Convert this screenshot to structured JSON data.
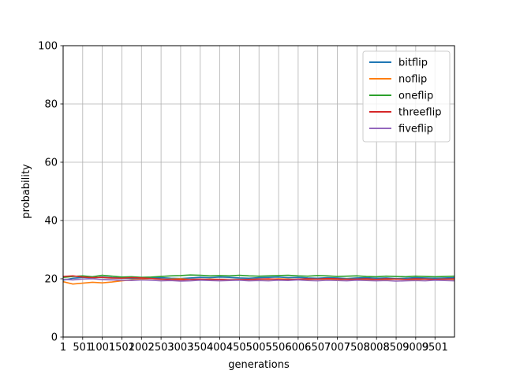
{
  "chart_data": {
    "type": "line",
    "xlabel": "generations",
    "ylabel": "probability",
    "ylim": [
      0,
      100
    ],
    "xlim": [
      1,
      10000
    ],
    "x_ticks": [
      1,
      501,
      1001,
      1501,
      2002,
      2503,
      3003,
      3504,
      4004,
      4505,
      5005,
      5506,
      6006,
      6507,
      7007,
      7508,
      8008,
      8509,
      9009,
      9501
    ],
    "x_tick_labels": [
      "1",
      "501",
      "1001",
      "1501",
      "2002",
      "2503",
      "3003",
      "3504",
      "4004",
      "4505",
      "5005",
      "5506",
      "6006",
      "6507",
      "7007",
      "7508",
      "8008",
      "8509",
      "9009",
      "9501"
    ],
    "y_ticks": [
      0,
      20,
      40,
      60,
      80,
      100
    ],
    "y_tick_labels": [
      "0",
      "20",
      "40",
      "60",
      "80",
      "100"
    ],
    "grid": true,
    "legend_position": "top-right",
    "x": [
      1,
      250,
      500,
      750,
      1000,
      1250,
      1500,
      1750,
      2000,
      2250,
      2500,
      2750,
      3000,
      3250,
      3500,
      3750,
      4000,
      4250,
      4500,
      4750,
      5000,
      5250,
      5500,
      5750,
      6000,
      6250,
      6500,
      6750,
      7000,
      7250,
      7500,
      7750,
      8000,
      8250,
      8500,
      8750,
      9000,
      9250,
      9500,
      9750,
      10000
    ],
    "series": [
      {
        "name": "bitflip",
        "color": "#1f77b4",
        "values": [
          19.5,
          20.2,
          20.5,
          20.3,
          20.6,
          20.4,
          20.3,
          20.1,
          20.2,
          20.3,
          20.4,
          20.2,
          20.1,
          20.3,
          20.5,
          20.4,
          20.6,
          20.5,
          20.3,
          20.2,
          20.4,
          20.5,
          20.6,
          20.4,
          20.5,
          20.3,
          20.2,
          20.4,
          20.3,
          20.1,
          20.3,
          20.4,
          20.2,
          20.3,
          20.1,
          20.2,
          20.4,
          20.3,
          20.2,
          20.3,
          20.4
        ]
      },
      {
        "name": "noflip",
        "color": "#ff7f0e",
        "values": [
          19.0,
          18.2,
          18.5,
          18.8,
          18.6,
          18.9,
          19.3,
          19.6,
          19.9,
          20.1,
          19.8,
          19.9,
          20.0,
          19.8,
          19.7,
          19.9,
          19.8,
          19.6,
          19.8,
          19.7,
          19.9,
          19.8,
          20.0,
          19.9,
          19.7,
          19.8,
          19.9,
          19.8,
          19.7,
          19.9,
          19.8,
          19.6,
          19.8,
          19.7,
          19.9,
          19.8,
          19.7,
          19.9,
          19.8,
          19.9,
          19.8
        ]
      },
      {
        "name": "oneflip",
        "color": "#2ca02c",
        "values": [
          20.5,
          20.8,
          21.0,
          20.7,
          21.2,
          20.9,
          20.6,
          20.7,
          20.5,
          20.6,
          20.8,
          21.0,
          21.1,
          21.3,
          21.2,
          21.0,
          21.1,
          21.0,
          21.2,
          21.0,
          20.9,
          21.0,
          21.1,
          21.2,
          21.0,
          20.9,
          21.1,
          21.0,
          20.8,
          20.9,
          21.0,
          20.8,
          20.7,
          20.9,
          20.8,
          20.7,
          20.9,
          20.8,
          20.7,
          20.8,
          20.9
        ]
      },
      {
        "name": "threeflip",
        "color": "#d62728",
        "values": [
          20.8,
          21.0,
          20.6,
          20.4,
          20.5,
          20.3,
          20.2,
          20.4,
          20.3,
          20.1,
          19.9,
          19.7,
          19.6,
          19.8,
          19.9,
          19.7,
          19.8,
          19.6,
          19.7,
          19.8,
          19.9,
          20.0,
          19.8,
          19.7,
          19.9,
          20.0,
          19.9,
          20.1,
          20.0,
          19.8,
          19.9,
          20.0,
          19.8,
          20.0,
          19.9,
          19.8,
          20.0,
          19.9,
          19.8,
          19.9,
          20.0
        ]
      },
      {
        "name": "fiveflip",
        "color": "#9467bd",
        "values": [
          19.8,
          19.6,
          19.9,
          20.0,
          19.7,
          19.6,
          19.5,
          19.4,
          19.6,
          19.5,
          19.3,
          19.4,
          19.2,
          19.3,
          19.5,
          19.4,
          19.3,
          19.4,
          19.5,
          19.3,
          19.4,
          19.3,
          19.5,
          19.4,
          19.6,
          19.4,
          19.3,
          19.5,
          19.4,
          19.3,
          19.5,
          19.4,
          19.3,
          19.4,
          19.2,
          19.3,
          19.4,
          19.3,
          19.5,
          19.4,
          19.3
        ]
      }
    ]
  }
}
